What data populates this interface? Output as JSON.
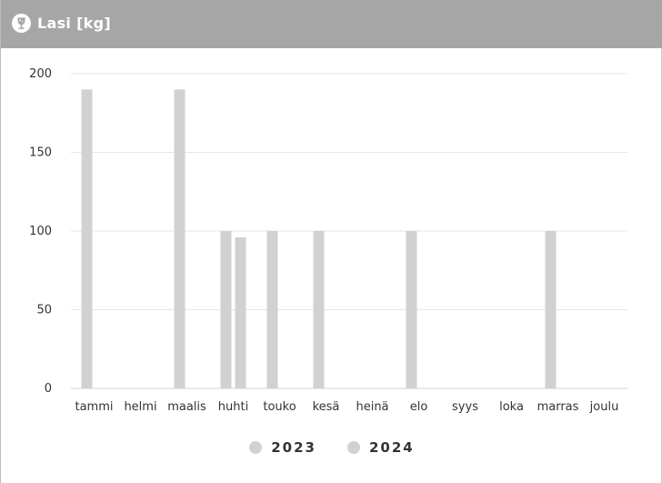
{
  "header": {
    "title": "Lasi [kg]",
    "icon": "wine-glass-icon",
    "background": "#a6a6a6"
  },
  "legend": [
    {
      "label": "2023",
      "color": "#d1d1d1"
    },
    {
      "label": "2024",
      "color": "#d1d1d1"
    }
  ],
  "chart_data": {
    "type": "bar",
    "categories": [
      "tammi",
      "helmi",
      "maalis",
      "huhti",
      "touko",
      "kesä",
      "heinä",
      "elo",
      "syys",
      "loka",
      "marras",
      "joulu"
    ],
    "series": [
      {
        "name": "2023",
        "color": "#d1d1d1",
        "values": [
          190,
          0,
          190,
          100,
          100,
          100,
          0,
          100,
          0,
          0,
          100,
          0
        ]
      },
      {
        "name": "2024",
        "color": "#d1d1d1",
        "values": [
          0,
          0,
          0,
          96,
          0,
          0,
          0,
          0,
          0,
          0,
          0,
          0
        ]
      }
    ],
    "yticks": [
      0,
      50,
      100,
      150,
      200
    ],
    "ylim": [
      0,
      200
    ],
    "grid": true,
    "legend_position": "bottom"
  }
}
